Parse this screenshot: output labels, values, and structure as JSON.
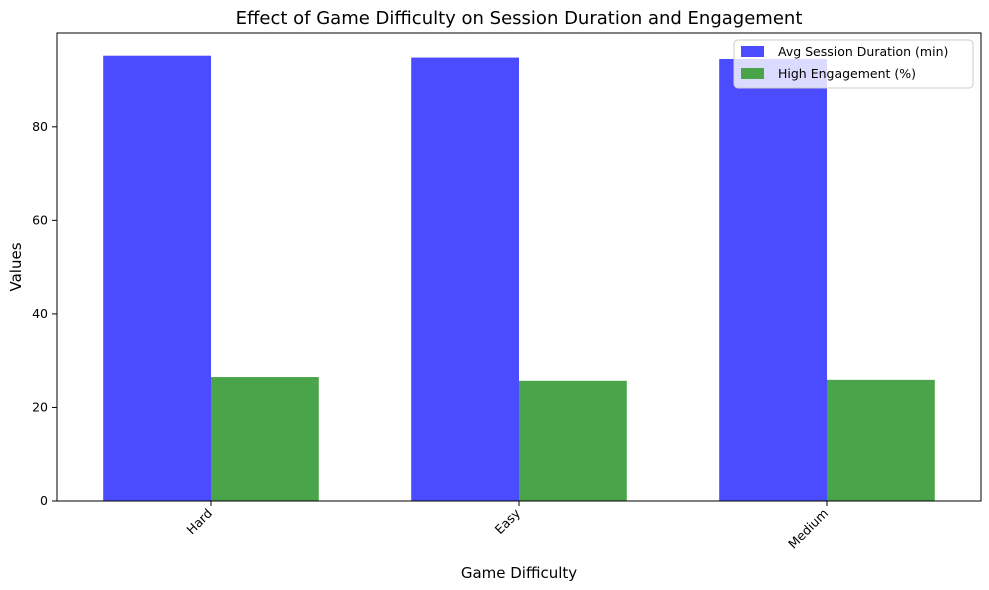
{
  "chart_data": {
    "type": "bar",
    "title": "Effect of Game Difficulty on Session Duration and Engagement",
    "xlabel": "Game Difficulty",
    "ylabel": "Values",
    "categories": [
      "Hard",
      "Easy",
      "Medium"
    ],
    "series": [
      {
        "name": "Avg Session Duration (min)",
        "values": [
          95.2,
          94.8,
          94.5
        ],
        "color": "#4b4bff"
      },
      {
        "name": "High Engagement (%)",
        "values": [
          26.5,
          25.7,
          25.9
        ],
        "color": "#4aa54a"
      }
    ],
    "ylim": [
      0,
      100
    ],
    "yticks": [
      0,
      20,
      40,
      60,
      80
    ],
    "x_tick_rotation": "45 degrees",
    "grid": false,
    "legend_position": "top-right"
  }
}
